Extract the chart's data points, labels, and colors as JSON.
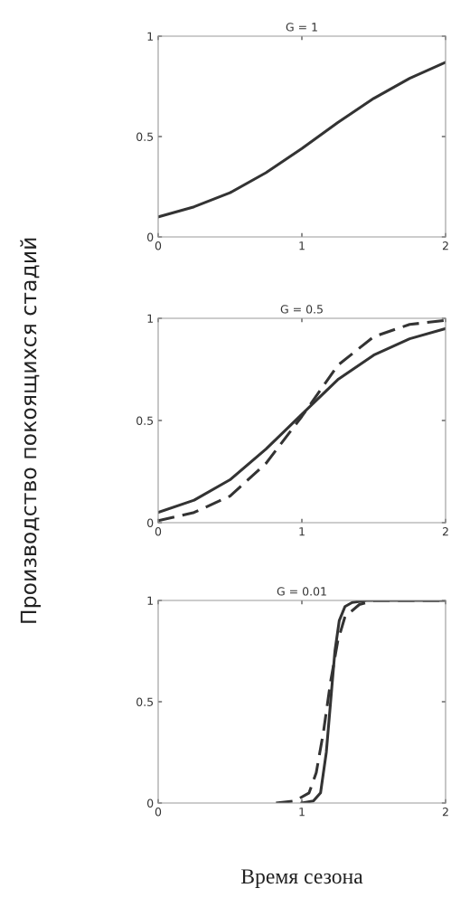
{
  "chart_data": [
    {
      "type": "line",
      "title": "G = 1",
      "xlim": [
        0,
        2
      ],
      "ylim": [
        0,
        1
      ],
      "xticks": [
        0,
        1,
        2
      ],
      "yticks": [
        0,
        0.5,
        1
      ],
      "series": [
        {
          "color": "#333333",
          "line_style": "solid",
          "x": [
            0,
            0.25,
            0.5,
            0.75,
            1.0,
            1.25,
            1.5,
            1.75,
            2.0
          ],
          "values": [
            0.1,
            0.15,
            0.22,
            0.32,
            0.44,
            0.57,
            0.69,
            0.79,
            0.87
          ]
        }
      ]
    },
    {
      "type": "line",
      "title": "G = 0.5",
      "ylabel": "Производство покоящихся стадий",
      "xlim": [
        0,
        2
      ],
      "ylim": [
        0,
        1
      ],
      "xticks": [
        0,
        1,
        2
      ],
      "yticks": [
        0,
        0.5,
        1
      ],
      "series": [
        {
          "color": "#333333",
          "line_style": "solid",
          "x": [
            0,
            0.25,
            0.5,
            0.75,
            1.0,
            1.25,
            1.5,
            1.75,
            2.0
          ],
          "values": [
            0.05,
            0.11,
            0.21,
            0.36,
            0.53,
            0.7,
            0.82,
            0.9,
            0.95
          ]
        },
        {
          "color": "#333333",
          "line_style": "dashed",
          "x": [
            0,
            0.25,
            0.5,
            0.75,
            1.0,
            1.25,
            1.5,
            1.75,
            2.0
          ],
          "values": [
            0.01,
            0.05,
            0.13,
            0.29,
            0.52,
            0.77,
            0.91,
            0.97,
            0.99
          ]
        }
      ]
    },
    {
      "type": "line",
      "title": "G = 0.01",
      "xlabel": "Время сезона",
      "xlim": [
        0,
        2
      ],
      "ylim": [
        0,
        1
      ],
      "xticks": [
        0,
        1,
        2
      ],
      "yticks": [
        0,
        0.5,
        1
      ],
      "series": [
        {
          "color": "#333333",
          "line_style": "solid",
          "x": [
            1.0,
            1.08,
            1.13,
            1.17,
            1.2,
            1.23,
            1.26,
            1.3,
            1.35,
            1.45,
            2.0
          ],
          "values": [
            0,
            0.01,
            0.05,
            0.25,
            0.5,
            0.75,
            0.9,
            0.97,
            0.99,
            1.0,
            1.0
          ]
        },
        {
          "color": "#333333",
          "line_style": "dashed",
          "x": [
            0.82,
            0.95,
            1.05,
            1.1,
            1.15,
            1.2,
            1.25,
            1.3,
            1.4,
            1.5,
            2.0
          ],
          "values": [
            0,
            0.01,
            0.05,
            0.15,
            0.35,
            0.6,
            0.8,
            0.92,
            0.98,
            1.0,
            1.0
          ]
        }
      ]
    }
  ]
}
